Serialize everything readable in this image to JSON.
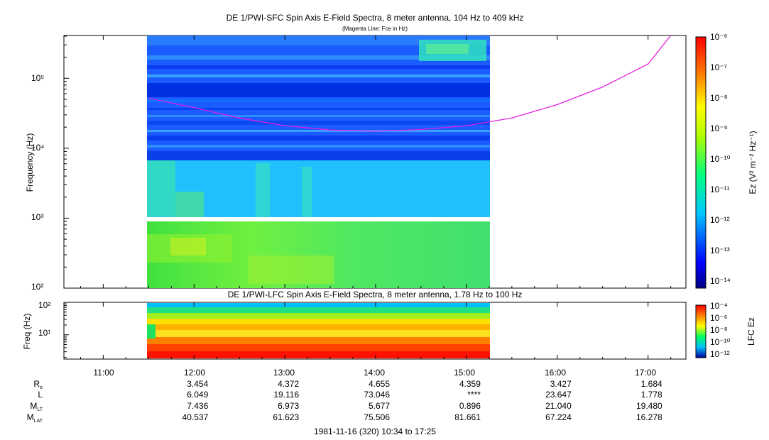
{
  "upper_panel": {
    "title": "DE 1/PWI-SFC  Spin Axis E-Field Spectra, 8 meter antenna, 104 Hz to 409 kHz",
    "subtitle": "(Magenta Line: Fce in Hz)",
    "ylabel": "Frequency (Hz)",
    "colorbar_label": "Ez (V² m⁻² Hz⁻¹)",
    "colorbar_ticks": [
      "10⁻⁶",
      "10⁻⁷",
      "10⁻⁸",
      "10⁻⁹",
      "10⁻¹⁰",
      "10⁻¹¹",
      "10⁻¹²",
      "10⁻¹³",
      "10⁻¹⁴"
    ],
    "ytick_labels": [
      "10⁵",
      "10⁴",
      "10³",
      "10²"
    ]
  },
  "lower_panel": {
    "title": "DE 1/PWI-LFC  Spin Axis E-Field Spectra, 8 meter antenna, 1.78 Hz to 100 Hz",
    "ylabel": "Freq (Hz)",
    "colorbar_label": "LFC Ez",
    "colorbar_ticks": [
      "10⁻⁴",
      "10⁻⁶",
      "10⁻⁸",
      "10⁻¹⁰",
      "10⁻¹²"
    ],
    "ytick_labels": [
      "10²",
      "10¹"
    ]
  },
  "time_axis": {
    "labels": [
      "11:00",
      "12:00",
      "13:00",
      "14:00",
      "15:00",
      "16:00",
      "17:00"
    ]
  },
  "ephemeris": {
    "labels": {
      "re": "Re",
      "l": "L",
      "mlt": "MLT",
      "mlat": "MLAT"
    },
    "re": [
      "3.454",
      "4.372",
      "4.655",
      "4.359",
      "3.427",
      "1.684"
    ],
    "l": [
      "6.049",
      "19.116",
      "73.046",
      "****",
      "23.647",
      "1.778"
    ],
    "mlt": [
      "7.436",
      "6.973",
      "5.677",
      "0.896",
      "21.040",
      "19.480"
    ],
    "mlat": [
      "40.537",
      "61.623",
      "75.506",
      "81.661",
      "67.224",
      "16.278"
    ]
  },
  "footer": "1981-11-16 (320) 10:34 to 17:25",
  "colors": {
    "fce_line": "#e020e0"
  },
  "chart_data": [
    {
      "type": "heatmap",
      "title": "DE 1/PWI-SFC  Spin Axis E-Field Spectra, 8 meter antenna, 104 Hz to 409 kHz",
      "xlabel": "",
      "ylabel": "Frequency (Hz)",
      "yscale": "log",
      "ylim": [
        100,
        409000
      ],
      "xlim_hours": [
        10.567,
        17.417
      ],
      "data_coverage_hours": [
        11.5,
        15.27
      ],
      "series": [
        {
          "name": "Fce",
          "x_hours": [
            11.5,
            12.0,
            12.5,
            13.0,
            13.5,
            14.0,
            14.5,
            15.0,
            15.5,
            16.0,
            16.5,
            17.0,
            17.25
          ],
          "y_hz": [
            52000,
            38000,
            27000,
            21000,
            18200,
            17500,
            18500,
            21000,
            27000,
            42000,
            75000,
            160000,
            409000
          ]
        }
      ]
    },
    {
      "type": "heatmap",
      "title": "DE 1/PWI-LFC  Spin Axis E-Field Spectra, 8 meter antenna, 1.78 Hz to 100 Hz",
      "xlabel": "",
      "ylabel": "Freq (Hz)",
      "yscale": "log",
      "ylim": [
        1.78,
        100
      ],
      "data_coverage_hours": [
        11.5,
        15.27
      ]
    }
  ]
}
